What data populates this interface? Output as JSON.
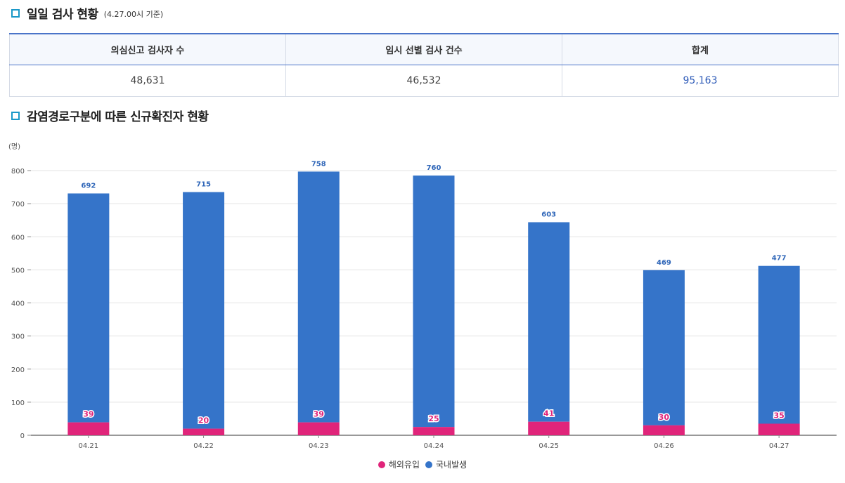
{
  "section1": {
    "title": "일일 검사 현황",
    "subtitle": "(4.27.00시 기준)"
  },
  "table": {
    "headers": [
      "의심신고 검사자 수",
      "임시 선별 검사 건수",
      "합계"
    ],
    "values": [
      "48,631",
      "46,532",
      "95,163"
    ]
  },
  "section2": {
    "title": "감염경로구분에 따른 신규확진자 현황"
  },
  "colors": {
    "overseas": "#e0247a",
    "domestic": "#3574c9",
    "accent": "#1a98c8"
  },
  "chart_data": {
    "type": "bar",
    "stacked": true,
    "ylabel": "(명)",
    "ylim": [
      0,
      800
    ],
    "yticks": [
      0,
      100,
      200,
      300,
      400,
      500,
      600,
      700,
      800
    ],
    "categories": [
      "04.21",
      "04.22",
      "04.23",
      "04.24",
      "04.25",
      "04.26",
      "04.27"
    ],
    "series": [
      {
        "name": "해외유입",
        "values": [
          39,
          20,
          39,
          25,
          41,
          30,
          35
        ]
      },
      {
        "name": "국내발생",
        "values": [
          692,
          715,
          758,
          760,
          603,
          469,
          477
        ]
      }
    ],
    "grid": true,
    "legend_position": "bottom"
  }
}
